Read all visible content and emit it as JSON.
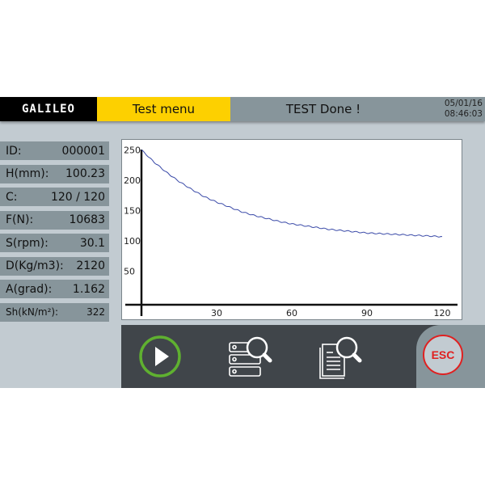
{
  "header": {
    "logo": "GALILEO",
    "menu_title": "Test menu",
    "status": "TEST Done !",
    "date": "05/01/16",
    "time": "08:46:03"
  },
  "params": [
    {
      "label": "ID:",
      "value": "000001"
    },
    {
      "label": "H(mm):",
      "value": "100.23"
    },
    {
      "label": "C:",
      "value": "120 / 120"
    },
    {
      "label": "F(N):",
      "value": "10683"
    },
    {
      "label": "S(rpm):",
      "value": "30.1"
    },
    {
      "label": "D(Kg/m3):",
      "value": "2120"
    },
    {
      "label": "A(grad):",
      "value": "1.162"
    },
    {
      "label": "Sh(kN/m²):",
      "value": "322"
    }
  ],
  "chart_data": {
    "type": "line",
    "title": "",
    "xlabel": "",
    "ylabel": "",
    "xlim": [
      0,
      125
    ],
    "ylim": [
      0,
      260
    ],
    "xticks": [
      30,
      60,
      90,
      120
    ],
    "yticks": [
      50,
      100,
      150,
      200,
      250
    ],
    "grid": false,
    "line_color": "#3a4aa8",
    "x": [
      0,
      5,
      10,
      15,
      20,
      25,
      30,
      35,
      40,
      45,
      50,
      55,
      60,
      65,
      70,
      75,
      80,
      85,
      90,
      95,
      100,
      105,
      110,
      115,
      120
    ],
    "y": [
      250,
      230,
      213,
      198,
      185,
      173,
      164,
      156,
      148,
      142,
      137,
      132,
      128,
      125,
      122,
      119,
      117,
      115,
      113,
      112,
      111,
      110,
      109,
      108,
      107
    ]
  },
  "toolbar": {
    "buttons": [
      {
        "name": "start-button",
        "icon": "play-icon",
        "color": "#5fb030"
      },
      {
        "name": "search-database-button",
        "icon": "database-search-icon"
      },
      {
        "name": "search-report-button",
        "icon": "document-search-icon"
      }
    ],
    "esc_label": "ESC",
    "esc_color": "#e02020"
  }
}
